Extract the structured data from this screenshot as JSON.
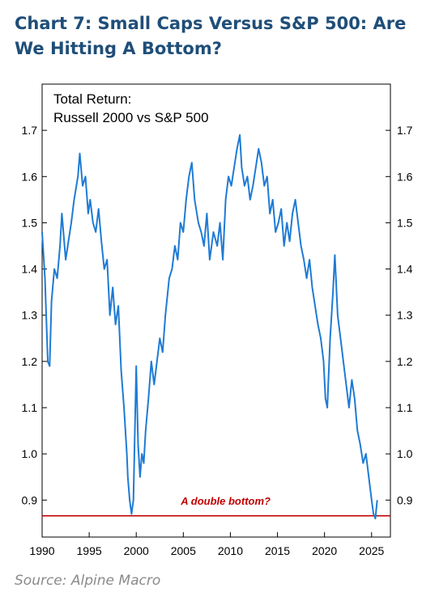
{
  "header": {
    "title": "Chart 7: Small Caps Versus S&P 500: Are We Hitting A Bottom?"
  },
  "footer": {
    "source": "Source: Alpine Macro"
  },
  "colors": {
    "title": "#1f4e79",
    "line": "#1f7bd4",
    "reference": "#c00000",
    "annotation": "#c00000",
    "source": "#8a8a8a"
  },
  "chart_data": {
    "type": "line",
    "title_lines": [
      "Total Return:",
      "Russell 2000 vs S&P 500"
    ],
    "xlabel": "",
    "ylabel": "",
    "xlim": [
      1990,
      2027
    ],
    "ylim": [
      0.82,
      1.8
    ],
    "x_ticks": [
      1990,
      1995,
      2000,
      2005,
      2010,
      2015,
      2020,
      2025
    ],
    "y_ticks": [
      0.9,
      1.0,
      1.1,
      1.2,
      1.3,
      1.4,
      1.5,
      1.6,
      1.7
    ],
    "y_axis_sides": [
      "left",
      "right"
    ],
    "grid": false,
    "series": [
      {
        "x": [
          1990.0,
          1990.3,
          1990.6,
          1990.8,
          1991.0,
          1991.3,
          1991.6,
          1991.9,
          1992.1,
          1992.5,
          1992.8,
          1993.1,
          1993.4,
          1993.8,
          1994.0,
          1994.3,
          1994.6,
          1994.9,
          1995.1,
          1995.4,
          1995.7,
          1996.0,
          1996.3,
          1996.6,
          1996.9,
          1997.2,
          1997.5,
          1997.8,
          1998.1,
          1998.4,
          1998.7,
          1999.0,
          1999.1,
          1999.3,
          1999.5,
          1999.7,
          1999.85,
          2000.0,
          2000.2,
          2000.4,
          2000.6,
          2000.8,
          2001.0,
          2001.3,
          2001.6,
          2001.9,
          2002.2,
          2002.5,
          2002.8,
          2003.1,
          2003.5,
          2003.8,
          2004.1,
          2004.4,
          2004.7,
          2005.0,
          2005.3,
          2005.6,
          2005.9,
          2006.2,
          2006.6,
          2006.9,
          2007.2,
          2007.5,
          2007.8,
          2008.2,
          2008.6,
          2008.9,
          2009.2,
          2009.5,
          2009.8,
          2010.1,
          2010.4,
          2010.7,
          2011.0,
          2011.2,
          2011.5,
          2011.8,
          2012.1,
          2012.4,
          2012.7,
          2013.0,
          2013.3,
          2013.6,
          2013.9,
          2014.2,
          2014.5,
          2014.8,
          2015.1,
          2015.4,
          2015.7,
          2016.0,
          2016.3,
          2016.6,
          2016.9,
          2017.2,
          2017.5,
          2017.8,
          2018.1,
          2018.4,
          2018.7,
          2019.0,
          2019.3,
          2019.6,
          2019.9,
          2020.1,
          2020.3,
          2020.6,
          2020.9,
          2021.1,
          2021.4,
          2021.7,
          2022.0,
          2022.3,
          2022.6,
          2022.9,
          2023.2,
          2023.5,
          2023.8,
          2024.1,
          2024.4,
          2024.7,
          2025.0,
          2025.2,
          2025.4,
          2025.6
        ],
        "values": [
          1.48,
          1.38,
          1.2,
          1.19,
          1.33,
          1.4,
          1.38,
          1.45,
          1.52,
          1.42,
          1.46,
          1.5,
          1.55,
          1.6,
          1.65,
          1.58,
          1.6,
          1.52,
          1.55,
          1.5,
          1.48,
          1.53,
          1.46,
          1.4,
          1.42,
          1.3,
          1.36,
          1.28,
          1.32,
          1.18,
          1.1,
          1.0,
          0.95,
          0.9,
          0.87,
          0.9,
          1.05,
          1.19,
          1.02,
          0.95,
          1.0,
          0.98,
          1.05,
          1.12,
          1.2,
          1.15,
          1.2,
          1.25,
          1.22,
          1.3,
          1.38,
          1.4,
          1.45,
          1.42,
          1.5,
          1.48,
          1.55,
          1.6,
          1.63,
          1.55,
          1.5,
          1.48,
          1.45,
          1.52,
          1.42,
          1.48,
          1.45,
          1.5,
          1.42,
          1.55,
          1.6,
          1.58,
          1.62,
          1.66,
          1.69,
          1.62,
          1.58,
          1.6,
          1.55,
          1.58,
          1.62,
          1.66,
          1.63,
          1.58,
          1.6,
          1.52,
          1.55,
          1.48,
          1.5,
          1.53,
          1.45,
          1.5,
          1.46,
          1.52,
          1.55,
          1.5,
          1.45,
          1.42,
          1.38,
          1.42,
          1.36,
          1.32,
          1.28,
          1.25,
          1.2,
          1.12,
          1.1,
          1.25,
          1.35,
          1.43,
          1.3,
          1.25,
          1.2,
          1.15,
          1.1,
          1.16,
          1.12,
          1.05,
          1.02,
          0.98,
          1.0,
          0.95,
          0.9,
          0.87,
          0.86,
          0.9
        ]
      }
    ],
    "reference_lines": [
      {
        "axis": "y",
        "value": 0.866
      }
    ],
    "annotations": [
      {
        "text": "A double bottom?",
        "x": 2009.5,
        "y": 0.89
      }
    ]
  }
}
